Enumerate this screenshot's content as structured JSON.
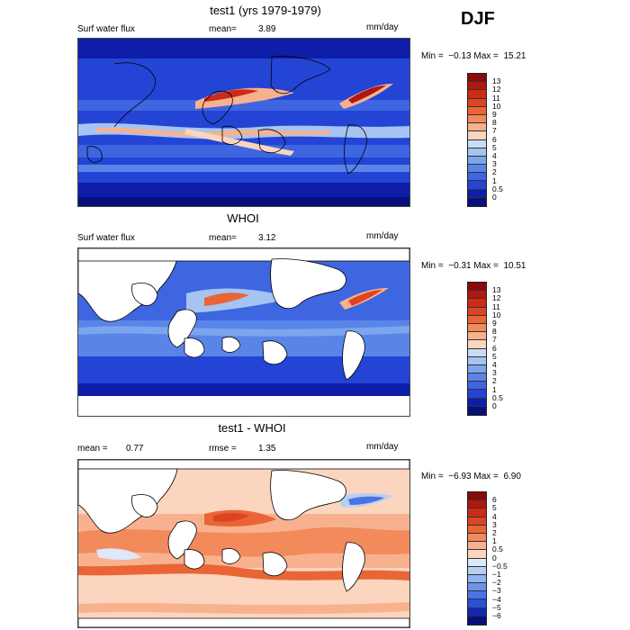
{
  "season": "DJF",
  "panels": [
    {
      "title": "test1 (yrs 1979-1979)",
      "variable": "Surf water flux",
      "stat1_label": "mean=",
      "stat1_value": "3.89",
      "stat2_label": "",
      "stat2_value": "",
      "units": "mm/day",
      "min_label": "Min =",
      "min_value": "−0.13",
      "max_label": "Max =",
      "max_value": "15.21",
      "scale": {
        "labels": [
          "13",
          "12",
          "11",
          "10",
          "9",
          "8",
          "7",
          "6",
          "5",
          "4",
          "3",
          "2",
          "1",
          "0.5",
          "0"
        ],
        "colors": [
          "#8b0a0a",
          "#b2170f",
          "#cc2b17",
          "#de4423",
          "#ea6535",
          "#f38a5c",
          "#f8b18e",
          "#fbd5bd",
          "#c9dcf5",
          "#a6c4f2",
          "#7da5ed",
          "#5a85e8",
          "#3d66e0",
          "#2444d6",
          "#0e1ea8",
          "#07107a"
        ]
      },
      "land_masked": false
    },
    {
      "title": "WHOI",
      "variable": "Surf water flux",
      "stat1_label": "mean=",
      "stat1_value": "3.12",
      "stat2_label": "",
      "stat2_value": "",
      "units": "mm/day",
      "min_label": "Min =",
      "min_value": "−0.31",
      "max_label": "Max =",
      "max_value": "10.51",
      "scale": {
        "labels": [
          "13",
          "12",
          "11",
          "10",
          "9",
          "8",
          "7",
          "6",
          "5",
          "4",
          "3",
          "2",
          "1",
          "0.5",
          "0"
        ],
        "colors": [
          "#8b0a0a",
          "#b2170f",
          "#cc2b17",
          "#de4423",
          "#ea6535",
          "#f38a5c",
          "#f8b18e",
          "#fbd5bd",
          "#c9dcf5",
          "#a6c4f2",
          "#7da5ed",
          "#5a85e8",
          "#3d66e0",
          "#2444d6",
          "#0e1ea8",
          "#07107a"
        ]
      },
      "land_masked": true
    },
    {
      "title": "test1 - WHOI",
      "variable": "",
      "stat1_label": "mean =",
      "stat1_value": "0.77",
      "stat2_label": "rmse =",
      "stat2_value": "1.35",
      "units": "mm/day",
      "min_label": "Min =",
      "min_value": "−6.93",
      "max_label": "Max =",
      "max_value": "6.90",
      "scale": {
        "labels": [
          "6",
          "5",
          "4",
          "3",
          "2",
          "1",
          "0.5",
          "0",
          "−0.5",
          "−1",
          "−2",
          "−3",
          "−4",
          "−5",
          "−6"
        ],
        "colors": [
          "#8b0a0a",
          "#b2170f",
          "#cc2b17",
          "#de4423",
          "#ea6535",
          "#f38a5c",
          "#f8b18e",
          "#fbd5bd",
          "#dde8f8",
          "#b7cff3",
          "#92b3ef",
          "#6d94ea",
          "#4a73e3",
          "#2a4fd9",
          "#1228b5",
          "#07107a"
        ]
      },
      "land_masked": true
    }
  ]
}
